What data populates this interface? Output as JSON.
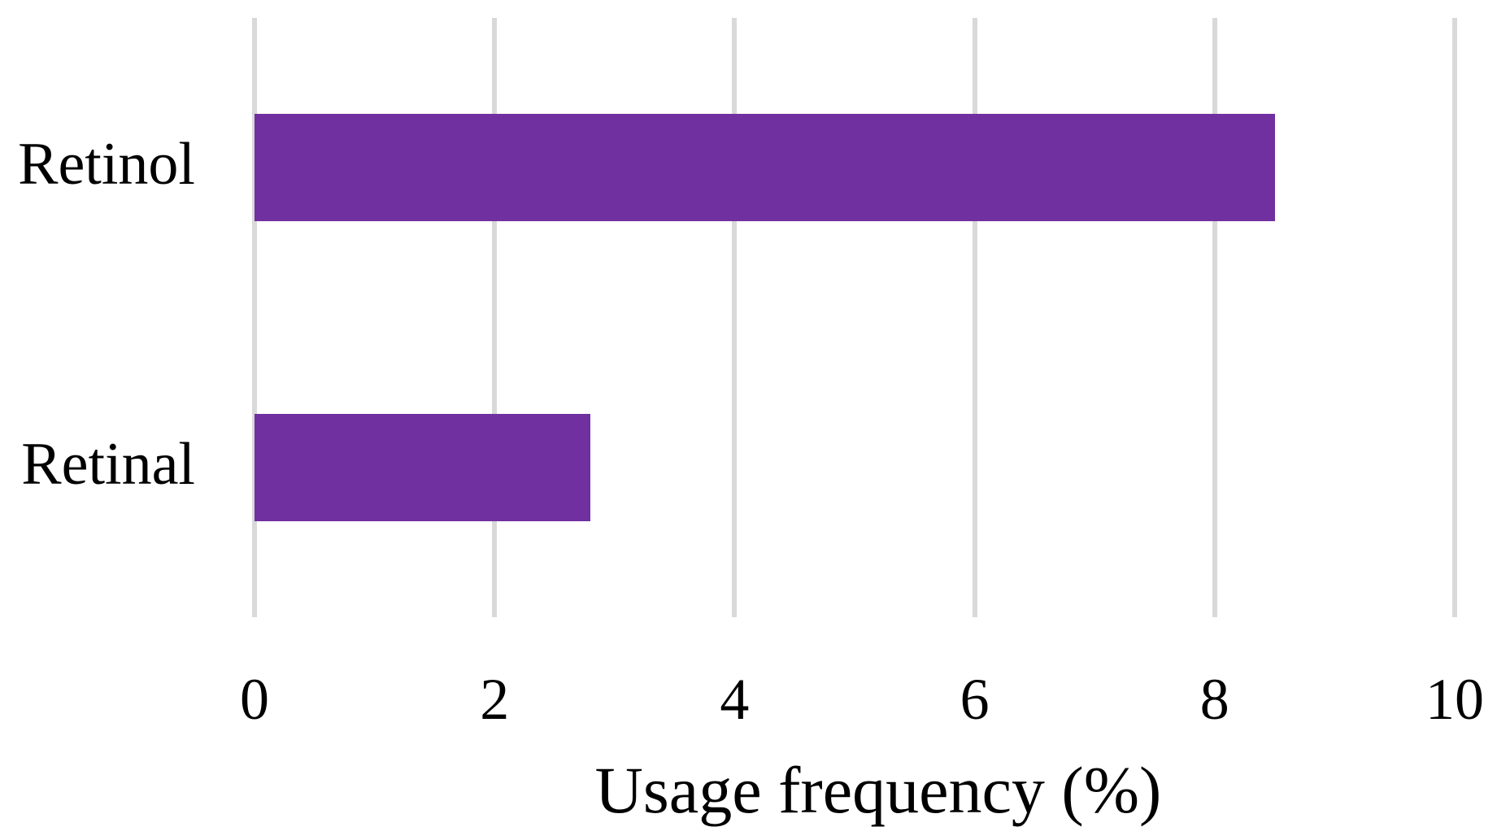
{
  "chart_data": {
    "type": "bar",
    "orientation": "horizontal",
    "title": "",
    "categories": [
      "Retinol",
      "Retinal"
    ],
    "values": [
      8.5,
      2.8
    ],
    "xlabel": "Usage frequency (%)",
    "ylabel": "",
    "xlim": [
      0,
      10
    ],
    "xticks": [
      "0",
      "2",
      "4",
      "6",
      "8",
      "10"
    ],
    "xtick_values": [
      0,
      2,
      4,
      6,
      8,
      10
    ],
    "grid": "vertical-gridlines-on",
    "legend": "none",
    "bar_color": "#7030A0",
    "gridline_color": "#D9D9D9",
    "text_color": "#000000",
    "background_color": "#FFFFFF"
  }
}
